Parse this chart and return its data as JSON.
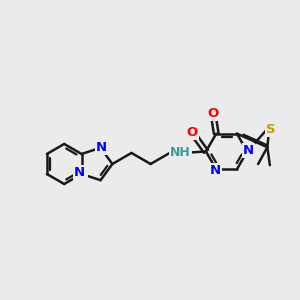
{
  "bg": "#ebebeb",
  "bond_color": "#1a1a1a",
  "bw": 1.8,
  "colors": {
    "N": "#0000ff",
    "O": "#ff0000",
    "S": "#b8a000",
    "H": "#3d9b9b",
    "C": "#1a1a1a"
  },
  "fs": 9.5
}
